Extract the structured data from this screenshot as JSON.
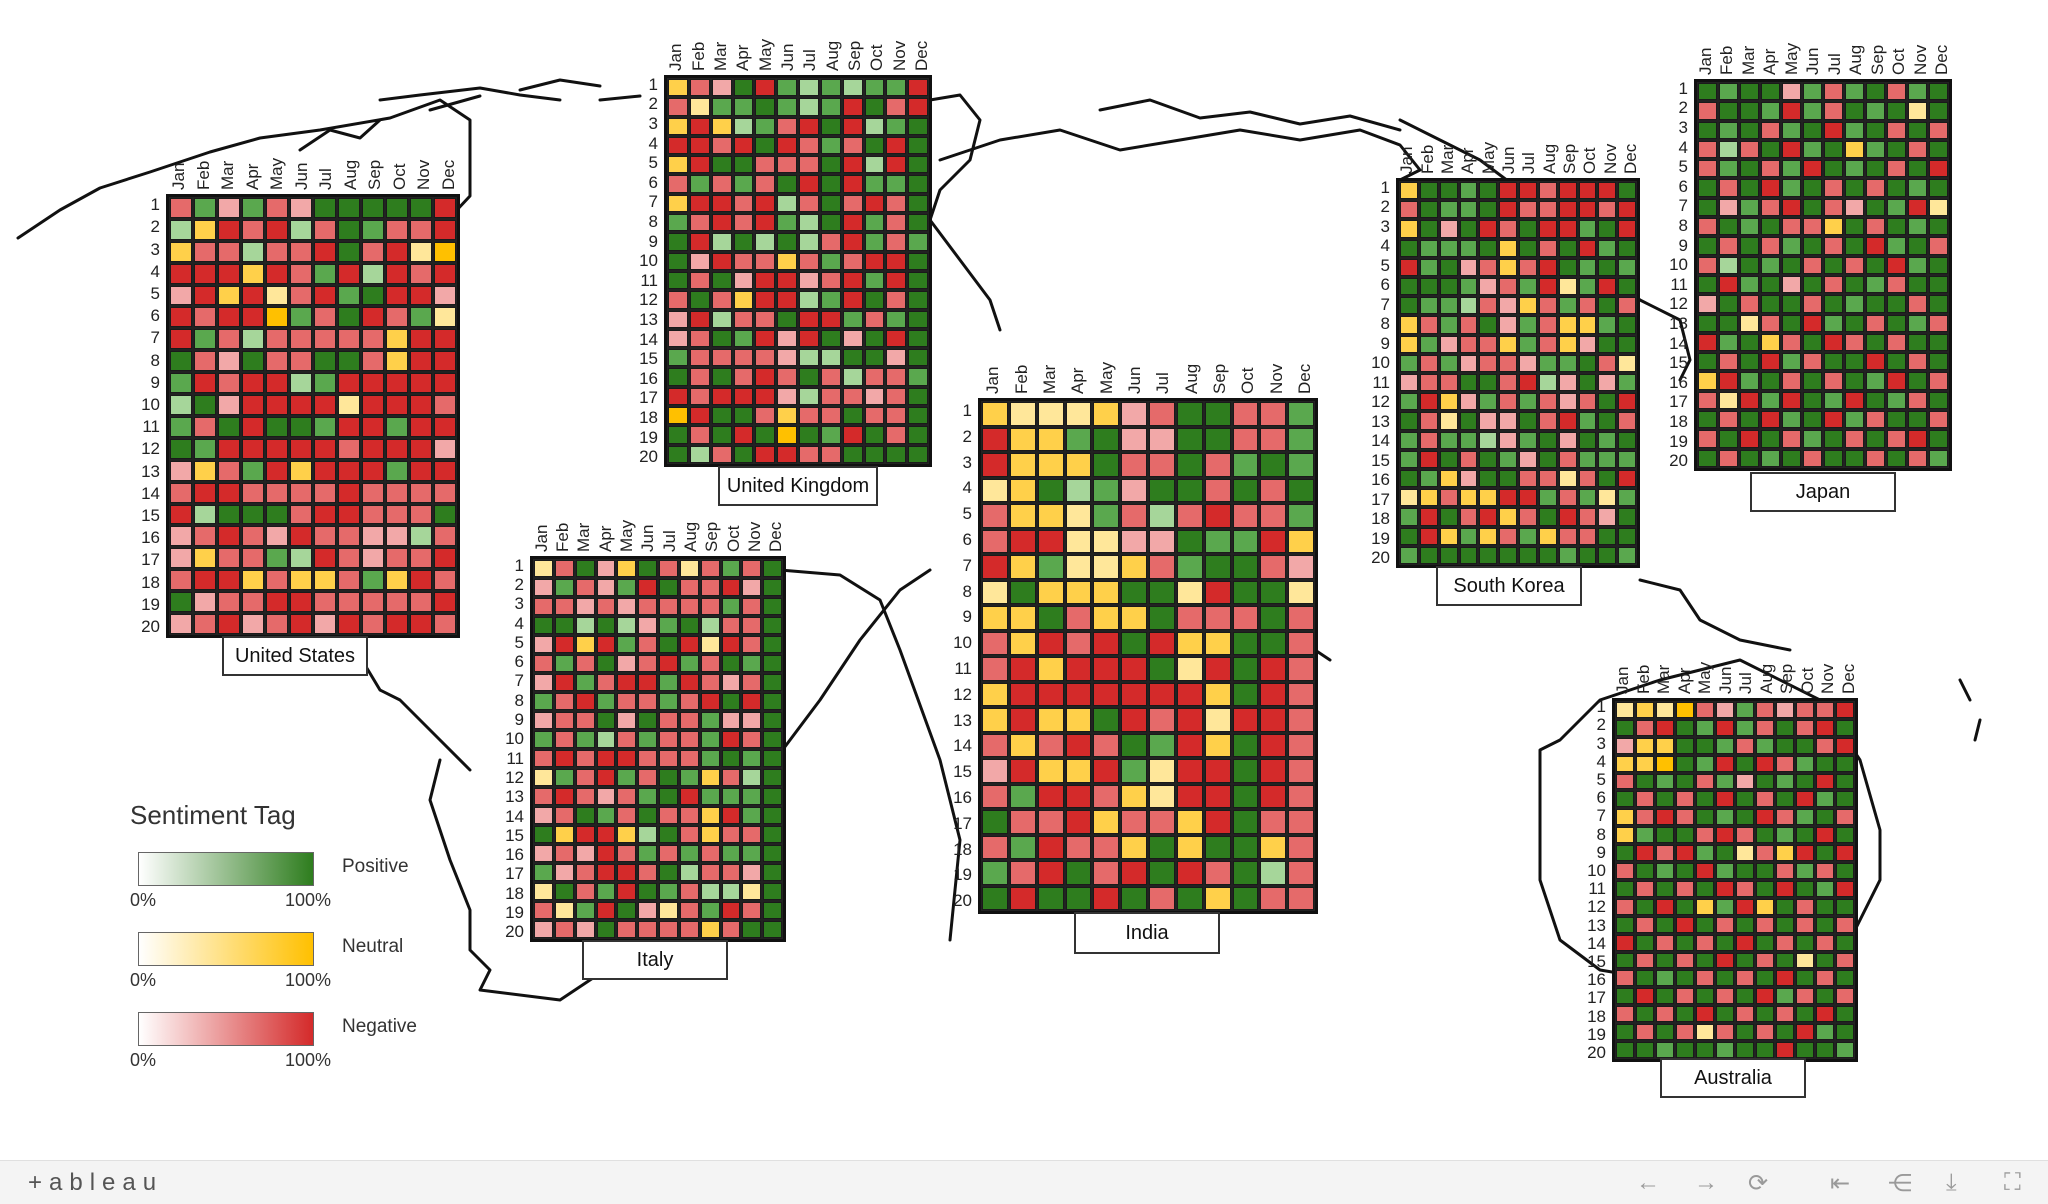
{
  "legend": {
    "title": "Sentiment Tag",
    "items": [
      {
        "name": "Positive",
        "min_label": "0%",
        "max_label": "100%",
        "color": "#2e7d1e"
      },
      {
        "name": "Neutral",
        "min_label": "0%",
        "max_label": "100%",
        "color": "#ffc000"
      },
      {
        "name": "Negative",
        "min_label": "0%",
        "max_label": "100%",
        "color": "#d42a2a"
      }
    ]
  },
  "footer": {
    "logo": "+ableau",
    "controls": [
      {
        "icon": "undo-icon",
        "glyph": "←"
      },
      {
        "icon": "redo-icon",
        "glyph": "→"
      },
      {
        "icon": "revert-icon",
        "glyph": "⟳"
      },
      {
        "icon": "revert-start-icon",
        "glyph": "⇤"
      },
      {
        "icon": "share-icon",
        "glyph": "⋲"
      },
      {
        "icon": "download-icon",
        "glyph": "⤓"
      },
      {
        "icon": "fullscreen-icon",
        "glyph": "⛶"
      }
    ]
  },
  "chart_data": {
    "type": "heatmap",
    "title": "",
    "legend_title": "Sentiment Tag",
    "legend_placement": "bottom-left",
    "color_scales": [
      {
        "tag": "Positive",
        "range": [
          "0%",
          "100%"
        ],
        "color": "#2e7d1e"
      },
      {
        "tag": "Neutral",
        "range": [
          "0%",
          "100%"
        ],
        "color": "#ffc000"
      },
      {
        "tag": "Negative",
        "range": [
          "0%",
          "100%"
        ],
        "color": "#d42a2a"
      }
    ],
    "months": [
      "Jan",
      "Feb",
      "Mar",
      "Apr",
      "May",
      "Jun",
      "Jul",
      "Aug",
      "Sep",
      "Oct",
      "Nov",
      "Dec"
    ],
    "days": [
      "1",
      "2",
      "3",
      "4",
      "5",
      "6",
      "7",
      "8",
      "9",
      "10",
      "11",
      "12",
      "13",
      "14",
      "15",
      "16",
      "17",
      "18",
      "19",
      "20"
    ],
    "countries": [
      {
        "name": "United States",
        "rows": [
          "N2 P2 N1 P2 N2 N1 P3 P3 P3 P3 P3 N3",
          "P1 U2 N3 N2 N3 P1 N2 P3 P2 N2 N2 N3",
          "U2 N2 N2 P1 N2 N2 N3 P3 N2 N3 U1 U3",
          "N3 N3 N3 U2 N3 N2 P2 N3 P1 N3 N2 N3",
          "N1 N3 U2 N3 U1 N2 N3 P2 P3 N3 N3 N1",
          "N3 N2 N3 N3 U3 P2 N2 P3 N3 N2 P2 U1",
          "N3 P2 N2 P1 N2 N2 N2 N2 N2 U2 N3 N3",
          "P3 N2 N1 P3 N2 N2 P3 P3 N2 U2 N3 N3",
          "P2 N3 N2 N3 N3 P1 P2 N3 N3 N3 N3 N3",
          "P1 P3 N1 N3 N3 N3 N3 U1 N3 N3 N3 N2",
          "P2 N2 P3 N3 P3 P3 P2 N3 N3 P2 N3 N3",
          "P3 P2 N3 N3 N3 N3 N3 N2 N3 N3 N3 N1",
          "N1 U2 N2 P2 N3 U2 N3 N3 N3 P2 N3 N3",
          "N2 N3 N3 N2 N2 N2 N2 N3 N2 N2 N2 N2",
          "N3 P1 P3 P3 P3 N2 N3 N3 N2 N2 N2 P3",
          "N1 N2 N3 N2 N1 N3 N2 N2 N1 N1 P1 N2",
          "N1 U2 N2 N2 P2 P1 N3 N2 N1 N2 N2 N3",
          "N2 N3 N3 U2 N2 U2 U2 N2 P2 U2 N3 N2",
          "P3 N1 N2 N2 N3 N3 N2 N2 N2 N2 N2 N3",
          "N1 N2 N3 N1 N2 N3 N1 N3 N2 N3 N3 N2"
        ]
      },
      {
        "name": "United Kingdom",
        "rows": [
          "U2 N2 N1 P3 N3 P2 P1 P2 P1 P2 P2 N3",
          "N2 U1 P2 P2 P3 P2 P1 P2 N3 P3 N2 N3",
          "U2 N3 U2 P1 P2 N2 N3 P3 N3 P1 P2 P3",
          "N3 N3 N2 N3 P3 N3 N2 P2 N2 P3 N3 P3",
          "U2 N3 P3 P3 N2 N2 N2 P3 N3 P1 N3 P3",
          "N2 P2 N2 P2 N2 P3 N3 P3 N3 P2 P2 P3",
          "U2 N3 N3 N2 N3 P1 N2 P3 N2 N3 N2 P3",
          "P2 N2 N3 N2 N3 P2 P1 P3 N3 P2 N2 P3",
          "P3 N3 P1 P3 P1 P3 P1 N2 N3 P2 N2 P2",
          "P3 N1 N3 N2 N2 U2 N2 P2 N2 N3 N3 P3",
          "P3 N2 P3 N1 N3 N3 N1 N2 N3 P2 N3 P3",
          "N2 P3 N2 U2 N3 N3 P1 P2 N3 P3 N2 P3",
          "N1 N3 P1 N2 N2 P3 N3 N3 P2 N2 P2 P3",
          "N1 N2 P3 P2 N3 N1 N3 P3 N1 P3 N3 P3",
          "P2 N2 N2 N2 N2 N1 P1 P1 P3 P3 N1 P3",
          "P3 N2 P3 N2 N3 N2 P3 N2 P1 N2 N2 P2",
          "N3 N2 N3 N3 N3 N1 P1 N2 N2 N1 N2 P3",
          "U3 N3 P3 P3 N2 U2 N2 N2 P3 N2 N2 P3",
          "P3 N2 P3 N3 P3 U3 P3 P2 N3 P3 N2 P3",
          "P3 P1 N2 P3 N3 N3 N2 N2 P3 P3 P3 P3"
        ]
      },
      {
        "name": "Italy",
        "rows": [
          "U1 N2 P3 N1 U2 P3 N2 U1 N2 P2 N2 P3",
          "N1 P2 N2 N1 P2 N3 P3 N2 N2 N3 N1 P3",
          "N2 N2 N1 N2 N1 N2 N2 N2 N2 P2 N2 P3",
          "P3 P3 P1 P3 P1 N1 P2 P3 P1 N2 N2 P3",
          "N1 N3 U2 N3 P2 N2 P3 N3 U1 N3 N2 P3",
          "N2 P2 N2 P3 N1 N2 N3 P2 N2 P3 P2 P3",
          "N1 N3 P2 N2 N3 N3 P2 N3 N2 N1 N2 P3",
          "P2 N2 N3 P2 N2 N2 P2 N2 N3 P3 N3 P3",
          "N1 N2 N2 P3 N1 P3 N2 N2 P2 N1 N1 P3",
          "P2 N2 P2 P1 N2 P2 N2 N2 P2 N3 N2 P3",
          "N2 N3 N2 N3 N3 N2 N2 N2 P2 P3 P2 P3",
          "U1 P2 N2 N3 P2 N2 P3 P2 U2 N2 P1 P3",
          "N2 N3 N2 N1 N2 P2 P3 N3 P2 P2 P2 P3",
          "N1 N2 P3 P2 N2 P3 N2 N2 U2 N3 P2 P3",
          "P3 U2 N3 N3 U2 P1 P3 N2 U2 N2 N2 P3",
          "N1 N2 N1 N3 N2 P2 N2 P2 N2 P2 P2 P3",
          "P2 N1 N2 N3 N3 N2 P3 P1 N2 N2 N1 P3",
          "U1 P3 N2 P2 N3 P3 P2 N2 P1 P1 U1 P3",
          "N2 U1 P2 N3 P3 N1 U1 N2 P2 N3 N2 P3",
          "N1 N2 N1 P3 N2 N2 N2 N2 U2 N2 P3 P3"
        ]
      },
      {
        "name": "India",
        "rows": [
          "U2 U1 U1 U1 U2 N1 N2 P3 P3 N2 N2 P2",
          "N3 U2 U2 P2 P3 N1 N1 P3 P3 N2 N2 P2",
          "N3 U2 U2 U2 P3 N2 N2 P3 N2 P2 P3 P2",
          "U1 U2 P3 P1 P2 N1 P3 P3 N2 P3 N2 P3",
          "N2 U2 U2 U1 P2 N2 P1 N2 N3 N2 N2 P2",
          "N2 N3 N3 U1 U1 N1 N1 P3 P2 P2 N3 U2",
          "N3 U2 P2 U1 U1 U2 N2 P2 P3 P3 N2 N1",
          "U1 P3 U2 U2 U2 P3 P3 U1 N3 P3 P3 U1",
          "U2 U2 P3 N2 U2 U2 P3 N2 N2 N2 P3 N2",
          "N2 U2 N3 N2 N3 P3 N3 U2 U2 P3 P3 N2",
          "N2 N3 U2 N3 N3 N3 P3 U1 N3 P3 N3 N2",
          "U2 N3 N3 N3 N3 N3 N3 N3 U2 P3 N3 N2",
          "U2 N3 U2 U2 P3 N3 N2 N3 U1 N3 N3 N2",
          "N2 U2 N2 N3 N2 P3 P2 N3 U2 P3 N3 N2",
          "N1 N3 U2 U2 N3 P2 U1 N3 N3 P3 N3 N2",
          "N2 P2 N3 N3 N2 U2 U1 N3 N3 P3 N3 N2",
          "P3 N2 N2 N3 U2 N2 N2 U2 N3 P3 N2 N2",
          "N2 P2 N3 N2 N2 U2 P3 U2 P3 P3 U2 N2",
          "P2 N2 N3 P3 N2 N3 P3 N3 N2 P3 P1 N2",
          "P3 N3 P3 P3 N3 P3 N2 P3 U2 P3 N2 N2"
        ]
      },
      {
        "name": "South Korea",
        "rows": [
          "U2 P3 P3 P2 P3 N3 N3 N2 N3 N3 N3 P3",
          "N2 P3 P2 P2 P3 N3 N2 N2 N3 N3 N2 N3",
          "U2 P3 N1 P3 N3 N2 P3 N3 N3 P2 P3 N3",
          "P3 P2 P2 P2 P3 U2 P3 N2 P3 N3 P2 P3",
          "N3 P2 P3 N1 N2 U2 N2 N3 P3 P2 P3 P2",
          "P3 P3 P3 P2 N1 N2 P2 N3 U1 P2 N3 P3",
          "P3 P2 P2 P1 N2 N1 U2 N2 P2 N2 P3 N2",
          "U2 N2 P2 N2 P3 N1 P2 N2 U2 U2 P2 P3",
          "U2 P2 N1 N2 N2 U2 P2 N2 U2 N1 P3 P3",
          "P2 N2 P2 N1 N2 N2 N1 P2 P2 P3 N2 U1",
          "N1 N2 N2 P3 P3 N2 N3 P1 N1 P3 N1 P2",
          "P2 N3 U2 N1 P2 N2 P2 N2 N1 N2 P3 N3",
          "P3 N2 U1 P3 N1 N1 P3 N2 N3 P2 P3 N2",
          "P2 N2 P2 P2 P1 N1 P2 P3 N1 P3 P2 P3",
          "P2 N3 P3 N2 P3 P2 N1 P3 N2 P2 P2 P2",
          "P3 P2 U2 N1 P3 P3 N2 N2 U1 N2 P3 N3",
          "U1 U2 N2 U2 U2 N3 N3 P2 N2 P2 U1 P2",
          "P2 N3 P3 N2 N3 U2 N2 P3 N3 N2 N1 P3",
          "P3 N3 U2 P2 U2 N2 P2 U2 N2 N2 P3 P3",
          "P2 P3 P3 P3 P3 P3 P3 P3 P2 P3 P3 P2"
        ]
      },
      {
        "name": "Japan",
        "rows": [
          "P3 P2 P3 P3 N1 P2 N2 P2 P3 N2 P2 P3",
          "N2 P3 P3 P2 N3 P2 N2 P3 P2 P3 U1 P3",
          "P3 P2 P3 N2 P2 P3 N3 P2 P3 N2 P3 N2",
          "N2 P1 N2 P3 N3 P2 P3 U2 P2 P3 N2 P3",
          "N2 P2 P3 N2 P2 N3 P3 P2 P3 N2 P3 N3",
          "P3 N2 P3 N3 P2 P3 N2 P3 N2 P3 P2 P3",
          "P3 N1 P2 N2 N3 P3 N2 N1 P3 P2 N3 U1",
          "N2 P3 P2 P3 N2 N2 U2 P3 N2 P3 P2 P3",
          "P3 N2 P3 N2 P2 P3 N2 P3 N3 P2 P3 N2",
          "N2 P1 P3 P2 P3 N2 P3 N2 P3 N3 P2 P3",
          "P3 N3 P2 P3 N1 P3 N2 P3 P2 N2 P3 P3",
          "N1 P3 N2 P3 P3 N2 P3 P2 P3 P3 N2 P3",
          "P3 P3 U1 N2 P3 N3 P2 P3 N2 P3 P2 N2",
          "N3 P2 P3 U2 N2 P3 N3 N2 P3 N2 P3 P3",
          "P3 N2 P3 N3 P2 N2 P3 P3 N3 P3 N2 P3",
          "U2 N3 P2 P3 N2 P3 N2 P3 P2 N3 P3 N2",
          "N2 U1 N3 P2 N3 P3 P2 N3 P3 P2 N2 P3",
          "P3 N2 P3 N3 P2 P3 N3 P2 N2 P3 P3 N2",
          "N2 P3 N3 P3 N2 P2 P3 N2 P3 N2 N3 P3",
          "P3 N2 P3 P2 P3 N2 P3 P3 N2 P3 N2 P2"
        ]
      },
      {
        "name": "Australia",
        "rows": [
          "U1 U2 U1 U3 N2 N1 P2 N2 N1 N2 N2 N3",
          "P3 N2 N3 P3 P2 N3 P2 N2 P3 N2 N3 P3",
          "N1 U2 U2 P3 P3 P2 N2 P2 P3 P3 N2 N3",
          "U2 U2 U3 P3 P2 N3 P3 N3 N2 P2 P3 P3",
          "N2 P3 P2 P3 N2 P2 N1 P3 P2 P3 N3 P3",
          "P3 N2 P3 N2 P3 N3 P3 N2 P3 N3 P2 P3",
          "U2 N2 N3 N2 P3 P2 P3 N3 N2 P2 P3 N2",
          "U2 P2 P3 P3 N2 N3 N2 P3 P2 P3 N3 P3",
          "P3 N3 N2 N3 P2 P3 U1 N2 U2 N3 P3 N3",
          "N2 P3 P2 P3 N3 P2 P3 P3 N2 P2 N2 P3",
          "P3 N2 P3 N2 P3 N3 N2 P3 N3 P3 P2 N3",
          "N2 P3 N3 P3 U2 P2 N3 U2 P3 N2 P3 P3",
          "P3 N2 P3 N3 P3 N2 P3 N2 P3 N2 P3 N2",
          "N3 P3 N2 P3 N2 P3 N3 P3 N2 P3 N2 P3",
          "P3 N2 P3 N2 P3 N3 P3 N2 P3 U1 P3 N2",
          "N2 P3 P2 P3 N2 P3 N2 P3 N3 P3 N2 P3",
          "P3 N3 P3 N2 P3 N2 P3 N3 P2 N2 P3 N2",
          "N2 P3 N2 P3 N3 P3 N2 P3 N2 P3 N3 P3",
          "P3 N2 P3 N2 U1 N2 P3 N2 P3 N3 P2 P3",
          "P3 P3 P2 P3 P3 P2 P3 P3 N3 P3 P3 P2"
        ]
      }
    ]
  }
}
